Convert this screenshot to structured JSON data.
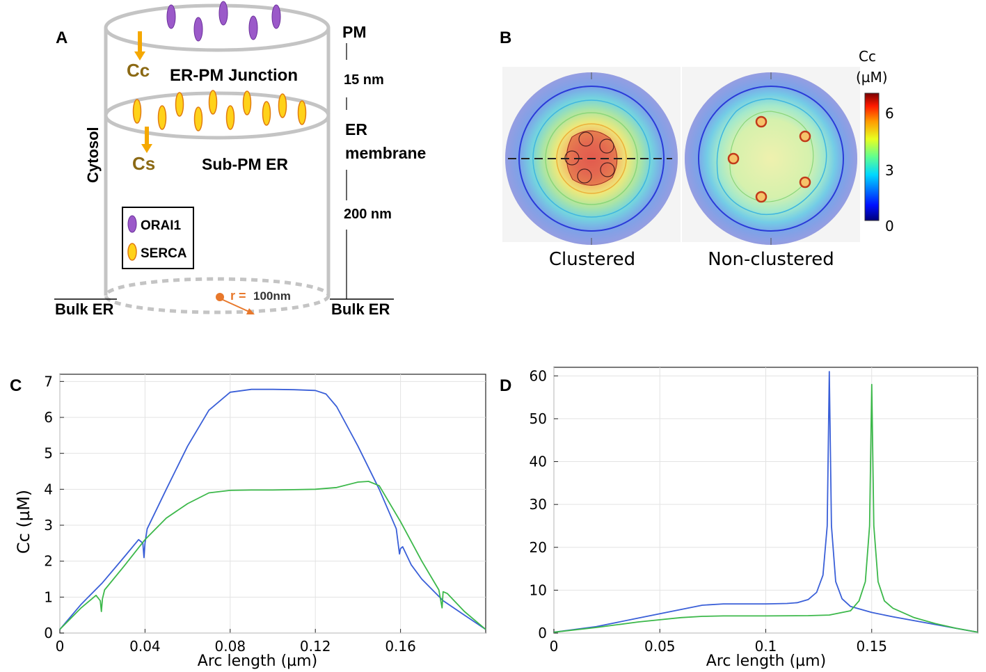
{
  "panel_labels": {
    "a": "A",
    "b": "B",
    "c": "C",
    "d": "D"
  },
  "panel_a": {
    "pm": "PM",
    "junction": "ER-PM Junction",
    "cc": "Cc",
    "cs": "Cs",
    "dist_15": "15 nm",
    "er_line1": "ER",
    "er_line2": "membrane",
    "sub_pm_er": "Sub-PM ER",
    "cytosol": "Cytosol",
    "dist_200": "200 nm",
    "legend_orai": "ORAI1",
    "legend_serca": "SERCA",
    "bulk_er_left": "Bulk ER",
    "bulk_er_right": "Bulk ER",
    "radius_label": "r = ",
    "radius_value": "100nm",
    "colors": {
      "orai": "#9b59c9",
      "serca": "#ffd21a",
      "arrow": "#f5a800",
      "radius": "#e8782b",
      "cc_text": "#8b6914"
    }
  },
  "panel_b": {
    "colorbar_title1": "Cc",
    "colorbar_title2": "(µM)",
    "ticks": [
      "6",
      "3",
      "0"
    ],
    "label_clustered": "Clustered",
    "label_nonclustered": "Non-clustered"
  },
  "chart_data": [
    {
      "type": "line",
      "panel": "C",
      "xlabel": "Arc length (µm)",
      "ylabel": "Cc (µM)",
      "xlim": [
        0,
        0.2
      ],
      "ylim": [
        0,
        7.2
      ],
      "xticks": [
        "0",
        "0.04",
        "0.08",
        "0.12",
        "0.16"
      ],
      "xtick_values": [
        0,
        0.04,
        0.08,
        0.12,
        0.16
      ],
      "yticks": [
        "0",
        "1",
        "2",
        "3",
        "4",
        "5",
        "6",
        "7"
      ],
      "ytick_values": [
        0,
        1,
        2,
        3,
        4,
        5,
        6,
        7
      ],
      "grid": true,
      "series": [
        {
          "name": "Clustered",
          "color": "#3a5fd8",
          "x": [
            0,
            0.01,
            0.02,
            0.03,
            0.037,
            0.039,
            0.0395,
            0.04,
            0.041,
            0.05,
            0.06,
            0.07,
            0.08,
            0.09,
            0.1,
            0.11,
            0.12,
            0.125,
            0.13,
            0.14,
            0.15,
            0.158,
            0.1595,
            0.16,
            0.161,
            0.165,
            0.17,
            0.18,
            0.19,
            0.2
          ],
          "y": [
            0.1,
            0.8,
            1.4,
            2.1,
            2.6,
            2.5,
            2.1,
            2.5,
            2.9,
            4.0,
            5.2,
            6.2,
            6.7,
            6.78,
            6.78,
            6.77,
            6.75,
            6.65,
            6.3,
            5.2,
            4.0,
            2.9,
            2.2,
            2.35,
            2.4,
            1.9,
            1.5,
            0.9,
            0.5,
            0.1
          ]
        },
        {
          "name": "Non-clustered",
          "color": "#3cb84a",
          "x": [
            0,
            0.01,
            0.017,
            0.019,
            0.0195,
            0.02,
            0.021,
            0.03,
            0.04,
            0.05,
            0.06,
            0.07,
            0.08,
            0.09,
            0.1,
            0.11,
            0.12,
            0.13,
            0.14,
            0.145,
            0.15,
            0.16,
            0.17,
            0.178,
            0.1795,
            0.18,
            0.182,
            0.19,
            0.2
          ],
          "y": [
            0.1,
            0.7,
            1.05,
            0.9,
            0.6,
            0.95,
            1.2,
            1.85,
            2.6,
            3.2,
            3.6,
            3.9,
            3.97,
            3.98,
            3.98,
            3.99,
            4.0,
            4.05,
            4.2,
            4.22,
            4.1,
            3.1,
            2.0,
            1.2,
            0.7,
            1.15,
            1.1,
            0.6,
            0.1
          ]
        }
      ]
    },
    {
      "type": "line",
      "panel": "D",
      "xlabel": "Arc length (µm)",
      "ylabel": "",
      "xlim": [
        0,
        0.2
      ],
      "ylim": [
        0,
        62
      ],
      "xticks": [
        "0",
        "0.05",
        "0.1",
        "0.15"
      ],
      "xtick_values": [
        0,
        0.05,
        0.1,
        0.15
      ],
      "yticks": [
        "0",
        "10",
        "20",
        "30",
        "40",
        "50",
        "60"
      ],
      "ytick_values": [
        0,
        10,
        20,
        30,
        40,
        50,
        60
      ],
      "grid": true,
      "series": [
        {
          "name": "Clustered",
          "color": "#3a5fd8",
          "x": [
            0,
            0.02,
            0.04,
            0.06,
            0.07,
            0.08,
            0.09,
            0.1,
            0.11,
            0.115,
            0.12,
            0.124,
            0.127,
            0.129,
            0.13,
            0.131,
            0.133,
            0.136,
            0.14,
            0.15,
            0.16,
            0.18,
            0.2
          ],
          "y": [
            0.2,
            1.5,
            3.5,
            5.5,
            6.5,
            6.8,
            6.8,
            6.8,
            6.9,
            7.1,
            7.8,
            9.5,
            13.5,
            25,
            61,
            25,
            12,
            8,
            6.2,
            4.8,
            3.8,
            2.0,
            0.2
          ]
        },
        {
          "name": "Non-clustered",
          "color": "#3cb84a",
          "x": [
            0,
            0.02,
            0.04,
            0.06,
            0.07,
            0.08,
            0.1,
            0.12,
            0.13,
            0.14,
            0.144,
            0.147,
            0.149,
            0.15,
            0.151,
            0.153,
            0.156,
            0.16,
            0.17,
            0.18,
            0.19,
            0.2
          ],
          "y": [
            0.2,
            1.3,
            2.6,
            3.6,
            3.9,
            4.0,
            4.0,
            4.05,
            4.2,
            5.2,
            7.5,
            12,
            25,
            58,
            25,
            12,
            7.5,
            5.8,
            3.6,
            2.2,
            1.1,
            0.2
          ]
        }
      ]
    }
  ]
}
